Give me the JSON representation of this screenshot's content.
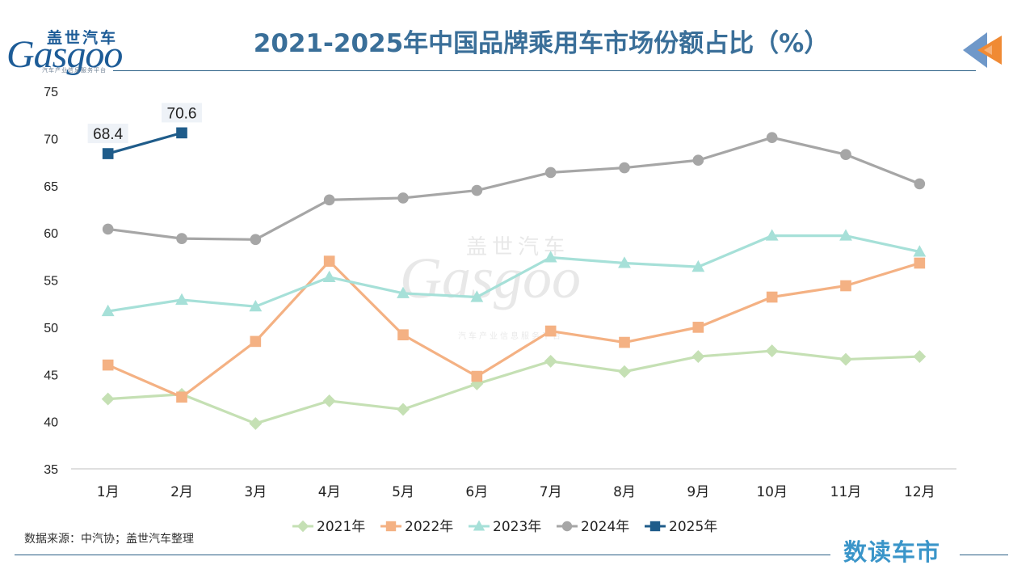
{
  "header": {
    "title": "2021-2025年中国品牌乘用车市场份额占比（%）",
    "logo_cn": "盖世汽车",
    "logo_en": "Gasgoo",
    "logo_tagline": "汽车产业信息服务平台"
  },
  "footer": {
    "source": "数据来源：中汽协；盖世汽车整理",
    "brand": "数读车市"
  },
  "watermark": {
    "cn": "盖世汽车",
    "en": "Gasgoo",
    "tagline": "汽车产业信息服务平台"
  },
  "colors": {
    "title": "#3a6f99",
    "rule": "#2b5f86",
    "deco_blue": "#6f98c9",
    "deco_orange": "#f08a34"
  },
  "chart_data": {
    "type": "line",
    "title": "2021-2025年中国品牌乘用车市场份额占比（%）",
    "xlabel": "",
    "ylabel": "",
    "categories": [
      "1月",
      "2月",
      "3月",
      "4月",
      "5月",
      "6月",
      "7月",
      "8月",
      "9月",
      "10月",
      "11月",
      "12月"
    ],
    "ylim": [
      35,
      75
    ],
    "yticks": [
      35,
      40,
      45,
      50,
      55,
      60,
      65,
      70,
      75
    ],
    "grid": false,
    "legend_position": "bottom",
    "series": [
      {
        "name": "2021年",
        "color": "#c5e0b4",
        "marker": "diamond",
        "values": [
          42.4,
          42.9,
          39.8,
          42.2,
          41.3,
          44.0,
          46.4,
          45.3,
          46.9,
          47.5,
          46.6,
          46.9
        ]
      },
      {
        "name": "2022年",
        "color": "#f4b183",
        "marker": "square",
        "values": [
          46.0,
          42.6,
          48.5,
          57.0,
          49.2,
          44.8,
          49.6,
          48.4,
          50.0,
          53.2,
          54.4,
          56.8
        ]
      },
      {
        "name": "2023年",
        "color": "#a6e0d8",
        "marker": "triangle",
        "values": [
          51.7,
          52.9,
          52.2,
          55.3,
          53.6,
          53.2,
          57.4,
          56.8,
          56.4,
          59.7,
          59.7,
          58.0
        ]
      },
      {
        "name": "2024年",
        "color": "#a6a6a6",
        "marker": "circle",
        "values": [
          60.4,
          59.4,
          59.3,
          63.5,
          63.7,
          64.5,
          66.4,
          66.9,
          67.7,
          70.1,
          68.3,
          65.2
        ]
      },
      {
        "name": "2025年",
        "color": "#1f5c8a",
        "marker": "square",
        "values": [
          68.4,
          70.6,
          null,
          null,
          null,
          null,
          null,
          null,
          null,
          null,
          null,
          null
        ],
        "data_labels": [
          "68.4",
          "70.6"
        ]
      }
    ]
  }
}
